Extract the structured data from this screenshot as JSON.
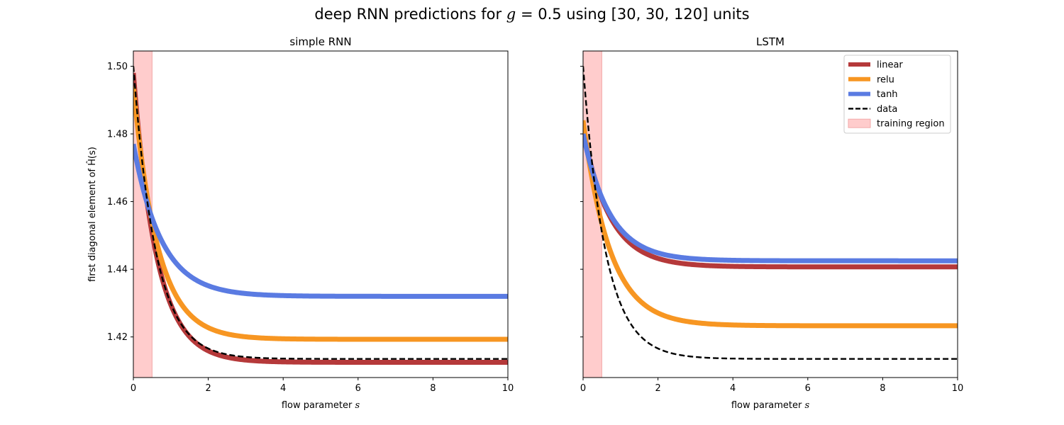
{
  "figure": {
    "title_prefix": "deep RNN predictions for",
    "title_var": "g",
    "title_eq": "= 0.5 using [30, 30, 120] units"
  },
  "colors": {
    "linear": "#b5393a",
    "relu": "#f79622",
    "tanh": "#5a7be2",
    "data": "#000000",
    "training": "#ffcccc"
  },
  "chart_data": [
    {
      "type": "line",
      "title": "simple RNN",
      "xlabel": "flow parameter s",
      "ylabel": "first diagonal element of Ĥ(s)",
      "xlim": [
        0,
        10
      ],
      "ylim": [
        1.408,
        1.5045
      ],
      "xticks": [
        "0",
        "2",
        "4",
        "6",
        "8",
        "10"
      ],
      "yticks": [
        "1.42",
        "1.44",
        "1.46",
        "1.48",
        "1.50"
      ],
      "training_region": [
        0,
        0.5
      ],
      "decay_model": "y(s) = final + (start - final) * exp(-s / tau)",
      "series": [
        {
          "name": "linear",
          "start": 1.498,
          "final": 1.4125,
          "tau": 0.62
        },
        {
          "name": "relu",
          "start": 1.494,
          "final": 1.4193,
          "tau": 0.65
        },
        {
          "name": "tanh",
          "start": 1.477,
          "final": 1.432,
          "tau": 0.75
        },
        {
          "name": "data",
          "start": 1.5,
          "final": 1.4135,
          "tau": 0.6
        }
      ]
    },
    {
      "type": "line",
      "title": "LSTM",
      "xlabel": "flow parameter s",
      "xlim": [
        0,
        10
      ],
      "ylim": [
        1.408,
        1.5045
      ],
      "xticks": [
        "0",
        "2",
        "4",
        "6",
        "8",
        "10"
      ],
      "training_region": [
        0,
        0.5
      ],
      "decay_model": "y(s) = final + (start - final) * exp(-s / tau)",
      "series": [
        {
          "name": "linear",
          "start": 1.481,
          "final": 1.4407,
          "tau": 0.72
        },
        {
          "name": "relu",
          "start": 1.484,
          "final": 1.4233,
          "tau": 0.72
        },
        {
          "name": "tanh",
          "start": 1.48,
          "final": 1.4425,
          "tau": 0.72
        },
        {
          "name": "data",
          "start": 1.5,
          "final": 1.4135,
          "tau": 0.6
        }
      ]
    }
  ],
  "legend": {
    "placement": "top-right",
    "items": [
      {
        "key": "linear",
        "label": "linear"
      },
      {
        "key": "relu",
        "label": "relu"
      },
      {
        "key": "tanh",
        "label": "tanh"
      },
      {
        "key": "data",
        "label": "data"
      },
      {
        "key": "training",
        "label": "training region"
      }
    ]
  }
}
